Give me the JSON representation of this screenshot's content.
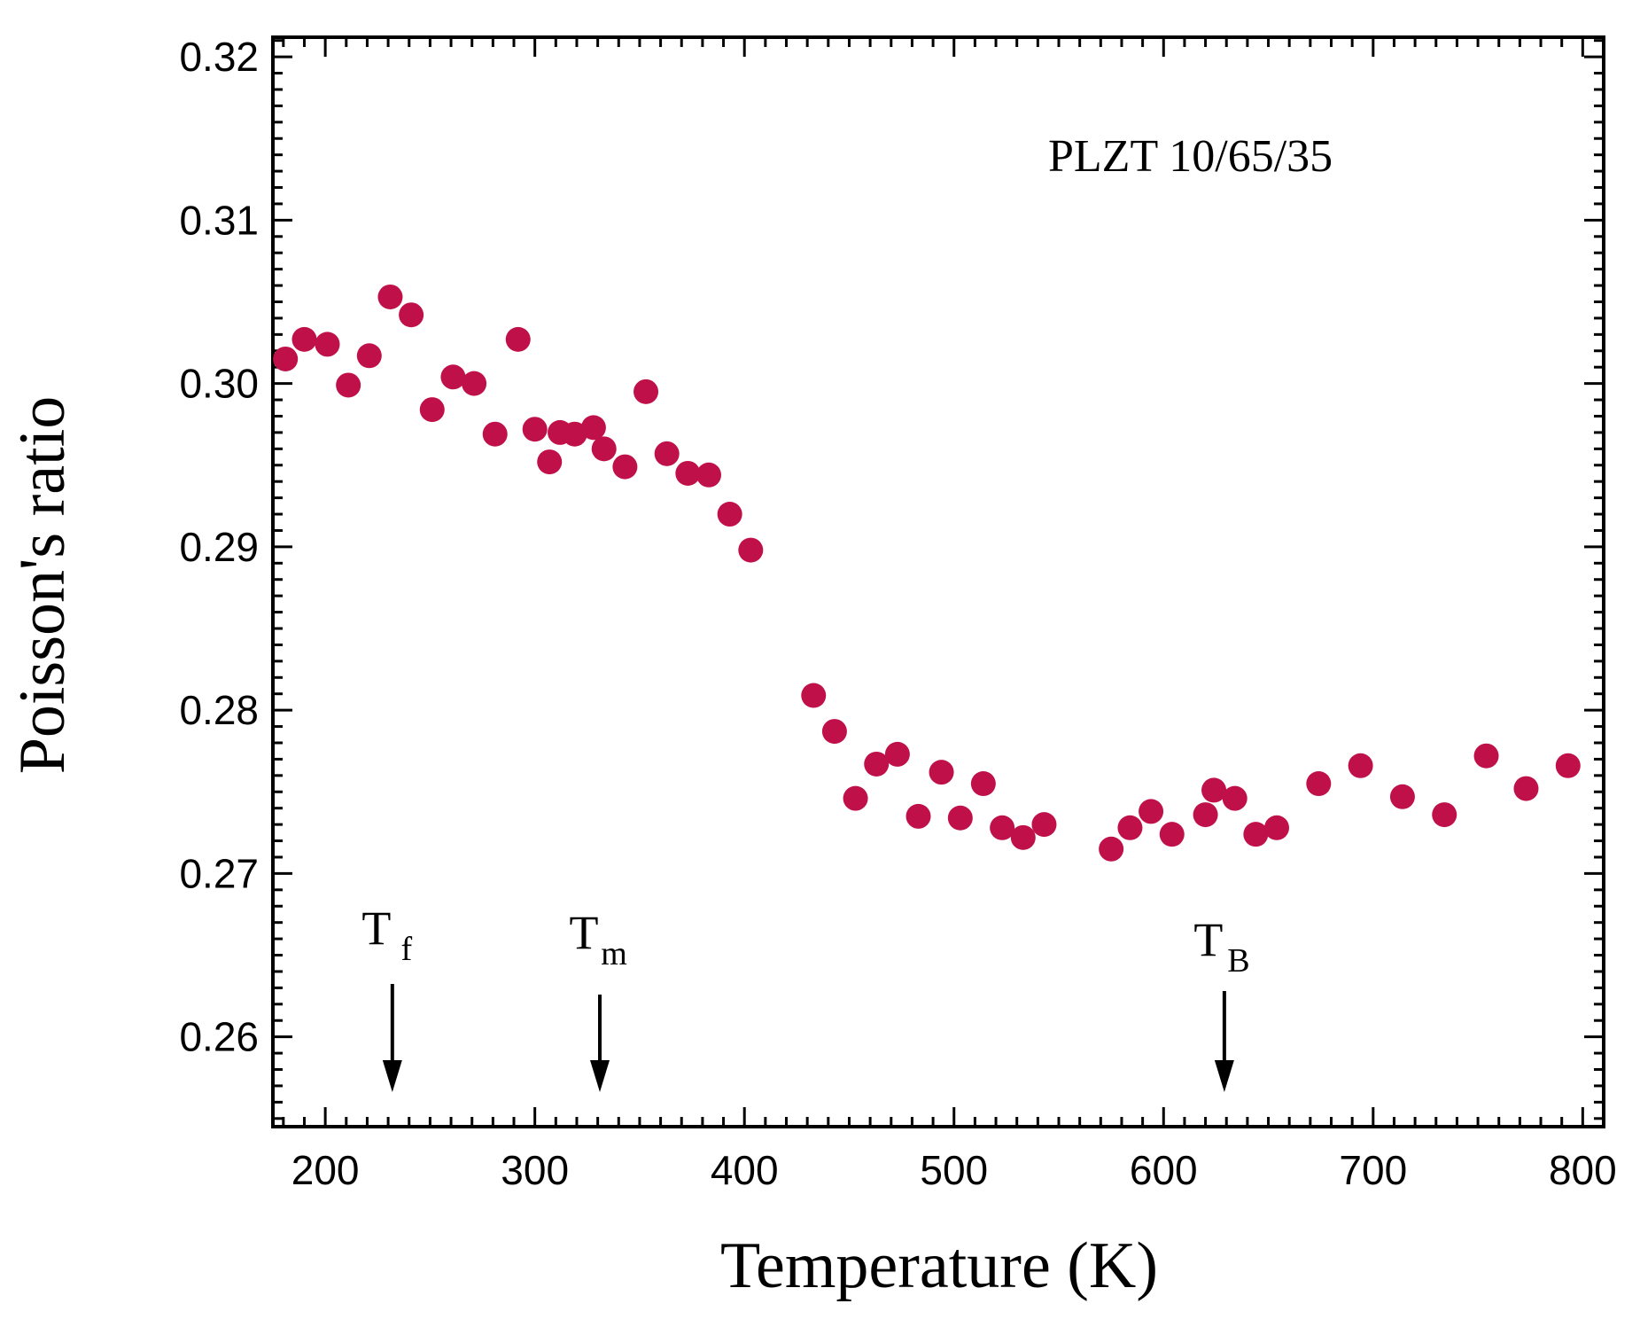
{
  "chart_data": {
    "type": "scatter",
    "title": "",
    "xlabel": "Temperature (K)",
    "ylabel": "Poisson's ratio",
    "xlim": [
      175,
      810
    ],
    "ylim": [
      0.2545,
      0.3212
    ],
    "xticks": [
      200,
      300,
      400,
      500,
      600,
      700,
      800
    ],
    "xtick_labels": [
      "200",
      "300",
      "400",
      "500",
      "600",
      "700",
      "800"
    ],
    "yticks": [
      0.26,
      0.27,
      0.28,
      0.29,
      0.3,
      0.31,
      0.32
    ],
    "ytick_labels": [
      "0.26",
      "0.27",
      "0.28",
      "0.29",
      "0.30",
      "0.31",
      "0.32"
    ],
    "marker_color": "#c0104a",
    "annotation": "PLZT 10/65/35",
    "series": [
      {
        "name": "PLZT 10/65/35",
        "x": [
          181,
          190,
          201,
          211,
          221,
          231,
          241,
          251,
          261,
          271,
          281,
          292,
          300,
          307,
          312,
          319,
          328,
          333,
          343,
          353,
          363,
          373,
          383,
          393,
          403,
          433,
          443,
          453,
          463,
          473,
          483,
          494,
          503,
          514,
          523,
          533,
          543,
          575,
          584,
          594,
          604,
          620,
          624,
          634,
          644,
          654,
          674,
          694,
          714,
          734,
          754,
          773,
          793
        ],
        "y": [
          0.3015,
          0.3027,
          0.3024,
          0.2999,
          0.3017,
          0.3053,
          0.3042,
          0.2984,
          0.3004,
          0.3,
          0.2969,
          0.3027,
          0.2972,
          0.2952,
          0.297,
          0.2969,
          0.2973,
          0.296,
          0.2949,
          0.2995,
          0.2957,
          0.2945,
          0.2944,
          0.292,
          0.2898,
          0.2809,
          0.2787,
          0.2746,
          0.2767,
          0.2773,
          0.2735,
          0.2762,
          0.2734,
          0.2755,
          0.2728,
          0.2722,
          0.273,
          0.2715,
          0.2728,
          0.2738,
          0.2724,
          0.2736,
          0.2751,
          0.2746,
          0.2724,
          0.2728,
          0.2755,
          0.2766,
          0.2747,
          0.2736,
          0.2772,
          0.2752,
          0.2766
        ]
      }
    ],
    "markers": [
      {
        "label": "T",
        "sub": "f",
        "x": 232
      },
      {
        "label": "T",
        "sub": "m",
        "x": 331
      },
      {
        "label": "T",
        "sub": "B",
        "x": 629
      }
    ],
    "grid": false,
    "legend": "none"
  }
}
